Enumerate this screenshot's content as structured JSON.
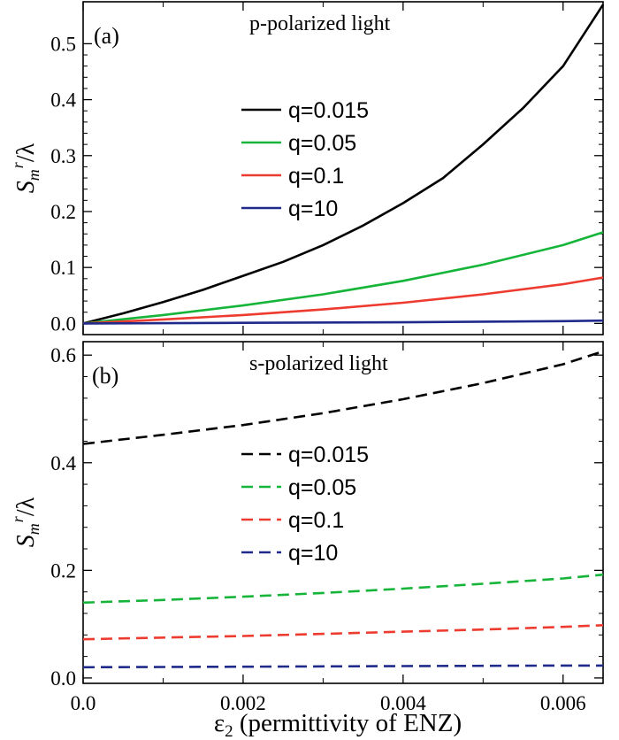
{
  "chart_data": [
    {
      "type": "line",
      "panel_label": "(a)",
      "title": "p-polarized light",
      "ylabel": "S_m^r/λ",
      "ylabel_main": "S",
      "ylabel_sub": "m",
      "ylabel_sup": "r",
      "ylabel_tail": "/λ",
      "xlim": [
        0.0,
        0.0065
      ],
      "ylim": [
        -0.02,
        0.575
      ],
      "yticks": [
        0.0,
        0.1,
        0.2,
        0.3,
        0.4,
        0.5
      ],
      "ytick_labels": [
        "0.0",
        "0.1",
        "0.2",
        "0.3",
        "0.4",
        "0.5"
      ],
      "line_style": "solid",
      "legend_position": "center",
      "series": [
        {
          "name": "q=0.015",
          "color": "#000000",
          "x": [
            0,
            0.0005,
            0.001,
            0.0015,
            0.002,
            0.0025,
            0.003,
            0.0035,
            0.004,
            0.0045,
            0.005,
            0.0055,
            0.006,
            0.0065
          ],
          "y": [
            0.0,
            0.018,
            0.038,
            0.06,
            0.085,
            0.11,
            0.14,
            0.175,
            0.215,
            0.26,
            0.32,
            0.385,
            0.46,
            0.57
          ]
        },
        {
          "name": "q=0.05",
          "color": "#16b53a",
          "x": [
            0,
            0.001,
            0.002,
            0.003,
            0.004,
            0.005,
            0.006,
            0.0065
          ],
          "y": [
            0.0,
            0.015,
            0.032,
            0.052,
            0.076,
            0.105,
            0.14,
            0.163
          ]
        },
        {
          "name": "q=0.1",
          "color": "#ee3b2f",
          "x": [
            0,
            0.001,
            0.002,
            0.003,
            0.004,
            0.005,
            0.006,
            0.0065
          ],
          "y": [
            0.0,
            0.007,
            0.015,
            0.025,
            0.037,
            0.052,
            0.07,
            0.082
          ]
        },
        {
          "name": "q=10",
          "color": "#1f2a8a",
          "x": [
            0,
            0.002,
            0.004,
            0.006,
            0.0065
          ],
          "y": [
            0.0,
            0.001,
            0.002,
            0.004,
            0.005
          ]
        }
      ]
    },
    {
      "type": "line",
      "panel_label": "(b)",
      "title": "s-polarized light",
      "ylabel": "S_m^r/λ",
      "ylabel_main": "S",
      "ylabel_sub": "m",
      "ylabel_sup": "r",
      "ylabel_tail": "/λ",
      "xlabel": "ε2 (permittivity of ENZ)",
      "xlabel_eps": "ε",
      "xlabel_sub": "2",
      "xlabel_rest": " (permittivity of ENZ)",
      "xlim": [
        0.0,
        0.0065
      ],
      "xticks": [
        0.0,
        0.002,
        0.004,
        0.006
      ],
      "xtick_labels": [
        "0.0",
        "0.002",
        "0.004",
        "0.006"
      ],
      "ylim": [
        -0.01,
        0.625
      ],
      "yticks": [
        0.0,
        0.2,
        0.4,
        0.6
      ],
      "ytick_labels": [
        "0.0",
        "0.2",
        "0.4",
        "0.6"
      ],
      "line_style": "dashed",
      "legend_position": "center",
      "series": [
        {
          "name": "q=0.015",
          "color": "#000000",
          "x": [
            0,
            0.001,
            0.002,
            0.003,
            0.004,
            0.005,
            0.006,
            0.0065
          ],
          "y": [
            0.435,
            0.452,
            0.47,
            0.492,
            0.518,
            0.548,
            0.583,
            0.607
          ]
        },
        {
          "name": "q=0.05",
          "color": "#16b53a",
          "x": [
            0,
            0.001,
            0.002,
            0.003,
            0.004,
            0.005,
            0.006,
            0.0065
          ],
          "y": [
            0.14,
            0.145,
            0.151,
            0.158,
            0.166,
            0.175,
            0.185,
            0.192
          ]
        },
        {
          "name": "q=0.1",
          "color": "#ee3b2f",
          "x": [
            0,
            0.001,
            0.002,
            0.003,
            0.004,
            0.005,
            0.006,
            0.0065
          ],
          "y": [
            0.072,
            0.075,
            0.078,
            0.082,
            0.086,
            0.09,
            0.095,
            0.098
          ]
        },
        {
          "name": "q=10",
          "color": "#1f2a8a",
          "x": [
            0,
            0.002,
            0.004,
            0.006,
            0.0065
          ],
          "y": [
            0.02,
            0.021,
            0.022,
            0.023,
            0.023
          ]
        }
      ]
    }
  ]
}
